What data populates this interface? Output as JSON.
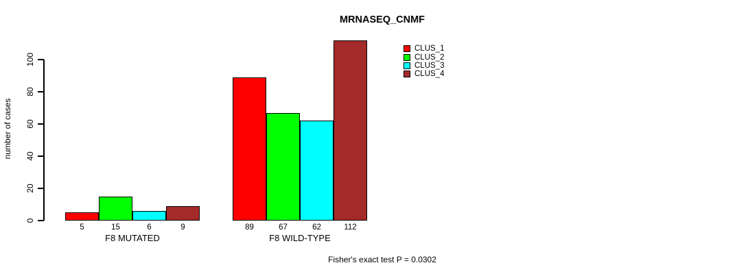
{
  "figure": {
    "title": "MRNASEQ_CNMF",
    "y_axis_label": "number of cases",
    "annotation": "Fisher's exact test P = 0.0302"
  },
  "chart_data": {
    "type": "bar",
    "title": "MRNASEQ_CNMF",
    "xlabel": "",
    "ylabel": "number of cases",
    "categories": [
      "F8 MUTATED",
      "F8 WILD-TYPE"
    ],
    "series": [
      {
        "name": "CLUS_1",
        "color": "#FF0000",
        "values": [
          5,
          89
        ]
      },
      {
        "name": "CLUS_2",
        "color": "#00FF00",
        "values": [
          15,
          67
        ]
      },
      {
        "name": "CLUS_3",
        "color": "#00FFFF",
        "values": [
          6,
          62
        ]
      },
      {
        "name": "CLUS_4",
        "color": "#A52A2A",
        "values": [
          9,
          112
        ]
      }
    ],
    "bar_value_labels": [
      [
        5,
        15,
        6,
        9
      ],
      [
        89,
        67,
        62,
        112
      ]
    ],
    "yticks": [
      0,
      20,
      40,
      60,
      80,
      100
    ],
    "ylim": [
      0,
      112
    ],
    "grid": false,
    "legend_position": "top-right",
    "legend_entries": [
      "CLUS_1",
      "CLUS_2",
      "CLUS_3",
      "CLUS_4"
    ],
    "annotation": "Fisher's exact test P = 0.0302"
  }
}
